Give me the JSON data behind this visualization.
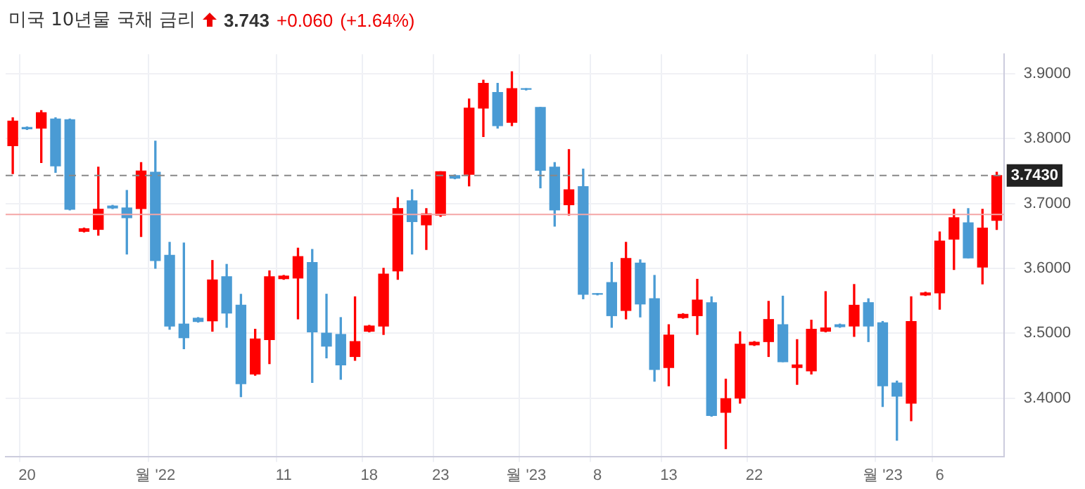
{
  "chart_data": {
    "type": "candlestick",
    "title": "미국 10년물 국채 금리",
    "annotations": [
      "3.743",
      "+0.060",
      "(+1.64%)"
    ],
    "categories": [
      null,
      "20",
      null,
      null,
      null,
      null,
      null,
      null,
      null,
      null,
      "월 '22",
      null,
      null,
      null,
      null,
      null,
      null,
      null,
      null,
      "11",
      null,
      null,
      null,
      null,
      null,
      "18",
      null,
      null,
      null,
      null,
      "23",
      null,
      null,
      null,
      null,
      null,
      "월 '23",
      null,
      null,
      null,
      null,
      "8",
      null,
      null,
      null,
      null,
      "13",
      null,
      null,
      null,
      null,
      null,
      "22",
      null,
      null,
      null,
      null,
      null,
      null,
      null,
      null,
      "월 '23",
      null,
      null,
      null,
      "6",
      null,
      null,
      null,
      null
    ],
    "ohlc": [
      [
        3.789,
        3.832,
        3.746,
        3.827
      ],
      [
        3.817,
        3.818,
        3.814,
        3.815
      ],
      [
        3.816,
        3.843,
        3.763,
        3.84
      ],
      [
        3.83,
        3.832,
        3.748,
        3.758
      ],
      [
        3.829,
        3.83,
        3.69,
        3.691
      ],
      [
        3.657,
        3.662,
        3.656,
        3.661
      ],
      [
        3.66,
        3.756,
        3.651,
        3.691
      ],
      [
        3.696,
        3.697,
        3.692,
        3.693
      ],
      [
        3.693,
        3.72,
        3.622,
        3.678
      ],
      [
        3.692,
        3.763,
        3.649,
        3.75
      ],
      [
        3.748,
        3.796,
        3.6,
        3.612
      ],
      [
        3.62,
        3.64,
        3.506,
        3.511
      ],
      [
        3.514,
        3.639,
        3.476,
        3.493
      ],
      [
        3.523,
        3.524,
        3.517,
        3.518
      ],
      [
        3.519,
        3.612,
        3.503,
        3.582
      ],
      [
        3.587,
        3.606,
        3.509,
        3.531
      ],
      [
        3.543,
        3.56,
        3.402,
        3.422
      ],
      [
        3.437,
        3.506,
        3.435,
        3.491
      ],
      [
        3.49,
        3.596,
        3.453,
        3.587
      ],
      [
        3.584,
        3.589,
        3.583,
        3.588
      ],
      [
        3.585,
        3.631,
        3.522,
        3.618
      ],
      [
        3.609,
        3.629,
        3.424,
        3.502
      ],
      [
        3.5,
        3.56,
        3.462,
        3.48
      ],
      [
        3.498,
        3.524,
        3.429,
        3.451
      ],
      [
        3.464,
        3.556,
        3.458,
        3.487
      ],
      [
        3.503,
        3.512,
        3.502,
        3.511
      ],
      [
        3.511,
        3.6,
        3.498,
        3.591
      ],
      [
        3.596,
        3.709,
        3.583,
        3.692
      ],
      [
        3.704,
        3.721,
        3.622,
        3.672
      ],
      [
        3.667,
        3.692,
        3.629,
        3.684
      ],
      [
        3.682,
        3.749,
        3.68,
        3.749
      ],
      [
        3.743,
        3.744,
        3.738,
        3.739
      ],
      [
        3.745,
        3.861,
        3.727,
        3.847
      ],
      [
        3.847,
        3.89,
        3.803,
        3.885
      ],
      [
        3.871,
        3.885,
        3.816,
        3.82
      ],
      [
        3.825,
        3.903,
        3.82,
        3.877
      ],
      [
        3.877,
        3.877,
        3.875,
        3.876
      ],
      [
        3.848,
        3.848,
        3.724,
        3.751
      ],
      [
        3.756,
        3.763,
        3.665,
        3.69
      ],
      [
        3.698,
        3.783,
        3.682,
        3.721
      ],
      [
        3.726,
        3.753,
        3.553,
        3.56
      ],
      [
        3.561,
        3.561,
        3.559,
        3.56
      ],
      [
        3.578,
        3.609,
        3.509,
        3.527
      ],
      [
        3.535,
        3.64,
        3.522,
        3.615
      ],
      [
        3.608,
        3.613,
        3.525,
        3.545
      ],
      [
        3.553,
        3.589,
        3.426,
        3.444
      ],
      [
        3.447,
        3.513,
        3.419,
        3.497
      ],
      [
        3.524,
        3.53,
        3.523,
        3.529
      ],
      [
        3.527,
        3.583,
        3.498,
        3.551
      ],
      [
        3.547,
        3.556,
        3.372,
        3.373
      ],
      [
        3.378,
        3.429,
        3.322,
        3.399
      ],
      [
        3.4,
        3.502,
        3.392,
        3.483
      ],
      [
        3.482,
        3.487,
        3.481,
        3.486
      ],
      [
        3.487,
        3.549,
        3.464,
        3.521
      ],
      [
        3.513,
        3.557,
        3.456,
        3.456
      ],
      [
        3.447,
        3.49,
        3.421,
        3.451
      ],
      [
        3.442,
        3.52,
        3.437,
        3.506
      ],
      [
        3.503,
        3.564,
        3.502,
        3.508
      ],
      [
        3.513,
        3.514,
        3.509,
        3.51
      ],
      [
        3.511,
        3.575,
        3.495,
        3.543
      ],
      [
        3.547,
        3.553,
        3.487,
        3.511
      ],
      [
        3.516,
        3.518,
        3.387,
        3.419
      ],
      [
        3.423,
        3.426,
        3.335,
        3.403
      ],
      [
        3.392,
        3.556,
        3.365,
        3.518
      ],
      [
        3.559,
        3.563,
        3.558,
        3.562
      ],
      [
        3.562,
        3.656,
        3.537,
        3.642
      ],
      [
        3.645,
        3.691,
        3.598,
        3.678
      ],
      [
        3.67,
        3.692,
        3.616,
        3.616
      ],
      [
        3.602,
        3.691,
        3.576,
        3.662
      ],
      [
        3.674,
        3.748,
        3.66,
        3.743
      ]
    ],
    "colors": [
      "#ff0000",
      "#4a9bd4",
      "#ff0000",
      "#4a9bd4",
      "#4a9bd4",
      "#ff0000",
      "#ff0000",
      "#4a9bd4",
      "#4a9bd4",
      "#ff0000",
      "#4a9bd4",
      "#4a9bd4",
      "#4a9bd4",
      "#4a9bd4",
      "#ff0000",
      "#4a9bd4",
      "#4a9bd4",
      "#ff0000",
      "#ff0000",
      "#ff0000",
      "#ff0000",
      "#4a9bd4",
      "#4a9bd4",
      "#4a9bd4",
      "#ff0000",
      "#ff0000",
      "#ff0000",
      "#ff0000",
      "#4a9bd4",
      "#ff0000",
      "#ff0000",
      "#4a9bd4",
      "#ff0000",
      "#ff0000",
      "#4a9bd4",
      "#ff0000",
      "#4a9bd4",
      "#4a9bd4",
      "#4a9bd4",
      "#ff0000",
      "#4a9bd4",
      "#4a9bd4",
      "#4a9bd4",
      "#ff0000",
      "#4a9bd4",
      "#4a9bd4",
      "#ff0000",
      "#ff0000",
      "#ff0000",
      "#4a9bd4",
      "#ff0000",
      "#ff0000",
      "#ff0000",
      "#ff0000",
      "#4a9bd4",
      "#ff0000",
      "#ff0000",
      "#ff0000",
      "#4a9bd4",
      "#ff0000",
      "#4a9bd4",
      "#4a9bd4",
      "#4a9bd4",
      "#ff0000",
      "#ff0000",
      "#ff0000",
      "#ff0000",
      "#4a9bd4",
      "#ff0000",
      "#ff0000"
    ],
    "ylim": [
      3.31,
      3.93
    ],
    "yticks": [
      {
        "value": 3.4,
        "label": "3.4000"
      },
      {
        "value": 3.5,
        "label": "3.5000"
      },
      {
        "value": 3.6,
        "label": "3.6000"
      },
      {
        "value": 3.7,
        "label": "3.7000"
      },
      {
        "value": 3.8,
        "label": "3.8000"
      },
      {
        "value": 3.9,
        "label": "3.9000"
      }
    ],
    "ref_lines": [
      {
        "axis": "y",
        "value": 3.743,
        "label": "3.7430",
        "color": "#888888",
        "line_style": "dashed"
      },
      {
        "axis": "y",
        "value": 3.683,
        "color": "#f4a6a6",
        "line_style": "solid"
      }
    ],
    "grid": true,
    "legend": false
  }
}
